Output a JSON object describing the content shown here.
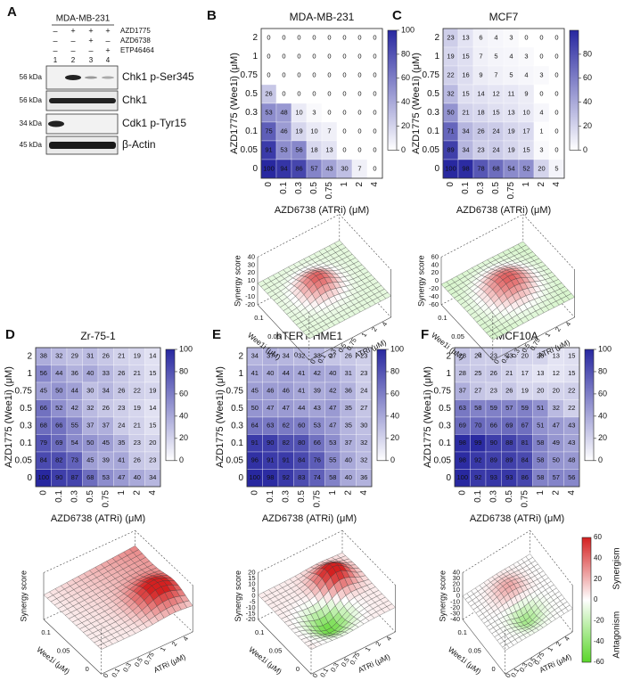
{
  "panel_a": {
    "label": "A",
    "cell_line": "MDA-MB-231",
    "treatments": [
      {
        "name": "AZD1775",
        "signs": [
          "–",
          "+",
          "+",
          "+"
        ]
      },
      {
        "name": "AZD6738",
        "signs": [
          "–",
          "–",
          "+",
          "–"
        ]
      },
      {
        "name": "ETP46464",
        "signs": [
          "–",
          "–",
          "–",
          "+"
        ]
      }
    ],
    "lanes": [
      1,
      2,
      3,
      4
    ],
    "blots": [
      {
        "mw": "56 kDa",
        "protein": "Chk1 p-Ser345"
      },
      {
        "mw": "56 kDa",
        "protein": "Chk1"
      },
      {
        "mw": "34 kDa",
        "protein": "Cdk1 p-Tyr15"
      },
      {
        "mw": "45 kDa",
        "protein": "β-Actin"
      }
    ]
  },
  "heatmaps": [
    {
      "label": "B",
      "title": "MDA-MB-231",
      "ylabel": "AZD1775 (Wee1i) (μM)",
      "xlabel": "AZD6738 (ATRi) (μM)",
      "rows": [
        2,
        1,
        0.75,
        0.5,
        0.3,
        0.1,
        0.05,
        0
      ],
      "cols": [
        0,
        0.1,
        0.3,
        0.5,
        0.75,
        1,
        2,
        4
      ],
      "values": [
        [
          0,
          0,
          0,
          0,
          0,
          0,
          0,
          0
        ],
        [
          0,
          0,
          0,
          0,
          0,
          0,
          0,
          0
        ],
        [
          0,
          0,
          0,
          0,
          0,
          0,
          0,
          0
        ],
        [
          26,
          0,
          0,
          0,
          0,
          0,
          0,
          0
        ],
        [
          53,
          48,
          10,
          3,
          0,
          0,
          0,
          0
        ],
        [
          75,
          46,
          19,
          10,
          7,
          0,
          0,
          0
        ],
        [
          91,
          53,
          56,
          18,
          13,
          0,
          0,
          0
        ],
        [
          100,
          94,
          86,
          57,
          43,
          30,
          7,
          0
        ]
      ],
      "color_range": [
        0,
        100
      ],
      "colorbar_ticks": [
        0,
        20,
        40,
        60,
        80,
        100
      ]
    },
    {
      "label": "C",
      "title": "MCF7",
      "ylabel": "AZD1775 (Wee1i) (μM)",
      "xlabel": "AZD6738 (ATRi) (μM)",
      "rows": [
        2,
        1,
        0.75,
        0.5,
        0.3,
        0.1,
        0.05,
        0
      ],
      "cols": [
        0,
        0.1,
        0.3,
        0.5,
        0.75,
        1,
        2,
        4
      ],
      "values": [
        [
          23,
          13,
          6,
          4,
          3,
          0,
          0,
          0
        ],
        [
          19,
          15,
          7,
          5,
          4,
          3,
          0,
          0
        ],
        [
          22,
          16,
          9,
          7,
          5,
          4,
          3,
          0
        ],
        [
          32,
          15,
          14,
          12,
          11,
          9,
          0,
          0
        ],
        [
          50,
          21,
          18,
          15,
          13,
          10,
          4,
          0
        ],
        [
          71,
          34,
          26,
          24,
          19,
          17,
          1,
          0
        ],
        [
          89,
          34,
          23,
          24,
          19,
          15,
          3,
          0
        ],
        [
          100,
          98,
          78,
          68,
          54,
          52,
          20,
          5
        ]
      ],
      "color_range": [
        0,
        100
      ],
      "colorbar_ticks": [
        0,
        20,
        40,
        60,
        80
      ]
    },
    {
      "label": "D",
      "title": "Zr-75-1",
      "ylabel": "AZD1775 (Wee1i) (μM)",
      "xlabel": "AZD6738 (ATRi) (μM)",
      "rows": [
        2,
        1,
        0.75,
        0.5,
        0.3,
        0.1,
        0.05,
        0
      ],
      "cols": [
        0,
        0.1,
        0.3,
        0.5,
        0.75,
        1,
        2,
        4
      ],
      "values": [
        [
          38,
          32,
          29,
          31,
          26,
          21,
          19,
          14
        ],
        [
          56,
          44,
          36,
          40,
          33,
          26,
          21,
          15
        ],
        [
          45,
          50,
          44,
          30,
          34,
          26,
          22,
          19
        ],
        [
          66,
          52,
          42,
          32,
          26,
          23,
          19,
          14
        ],
        [
          68,
          66,
          55,
          37,
          37,
          24,
          21,
          15
        ],
        [
          79,
          69,
          54,
          50,
          45,
          35,
          23,
          20
        ],
        [
          84,
          82,
          73,
          45,
          39,
          41,
          26,
          23
        ],
        [
          100,
          90,
          87,
          68,
          53,
          47,
          40,
          34
        ]
      ],
      "color_range": [
        0,
        100
      ],
      "colorbar_ticks": [
        0,
        20,
        40,
        60,
        80,
        100
      ]
    },
    {
      "label": "E",
      "title": "hTERT-HME1",
      "ylabel": "AZD1775 (Wee1i) (μM)",
      "xlabel": "AZD6738 (ATRi) (μM)",
      "rows": [
        2,
        1,
        0.75,
        0.5,
        0.3,
        0.1,
        0.05,
        0
      ],
      "cols": [
        0,
        0.1,
        0.3,
        0.5,
        0.75,
        1,
        2,
        4
      ],
      "values": [
        [
          34,
          37,
          34,
          32,
          33,
          27,
          26,
          23
        ],
        [
          41,
          40,
          44,
          41,
          42,
          40,
          31,
          23
        ],
        [
          45,
          46,
          46,
          41,
          39,
          42,
          36,
          24
        ],
        [
          50,
          47,
          47,
          44,
          43,
          47,
          35,
          27
        ],
        [
          64,
          63,
          62,
          60,
          53,
          47,
          35,
          30
        ],
        [
          91,
          90,
          82,
          80,
          66,
          53,
          37,
          32
        ],
        [
          96,
          91,
          91,
          84,
          76,
          55,
          40,
          32
        ],
        [
          100,
          98,
          92,
          83,
          74,
          58,
          40,
          36
        ]
      ],
      "color_range": [
        0,
        100
      ],
      "colorbar_ticks": [
        0,
        20,
        40,
        60,
        80,
        100
      ]
    },
    {
      "label": "F",
      "title": "MCF10A",
      "ylabel": "AZD1775 (Wee1i) (μM)",
      "xlabel": "AZD6738 (ATRi) (μM)",
      "rows": [
        2,
        1,
        0.75,
        0.5,
        0.3,
        0.1,
        0.05,
        0
      ],
      "cols": [
        0,
        0.1,
        0.3,
        0.5,
        0.75,
        1,
        2,
        4
      ],
      "values": [
        [
          28,
          24,
          23,
          23,
          20,
          20,
          13,
          15
        ],
        [
          28,
          25,
          26,
          21,
          17,
          13,
          12,
          15
        ],
        [
          37,
          27,
          23,
          26,
          19,
          20,
          20,
          22
        ],
        [
          63,
          58,
          59,
          57,
          59,
          51,
          32,
          22
        ],
        [
          69,
          70,
          66,
          69,
          67,
          51,
          47,
          43
        ],
        [
          98,
          99,
          90,
          88,
          81,
          58,
          49,
          43
        ],
        [
          98,
          92,
          89,
          89,
          84,
          58,
          50,
          48
        ],
        [
          100,
          92,
          93,
          93,
          86,
          58,
          57,
          56
        ]
      ],
      "color_range": [
        0,
        100
      ],
      "colorbar_ticks": [
        0,
        20,
        40,
        60,
        80,
        100
      ]
    }
  ],
  "surfaces": [
    {
      "zlabel": "Synergy score",
      "zticks": [
        40,
        30,
        20,
        10,
        0,
        -10,
        -20
      ],
      "wee1_label": "Wee1i (μM)",
      "wee1_ticks": [
        0,
        0.05,
        0.1
      ],
      "atri_label": "ATRi (μM)",
      "atri_ticks": [
        0,
        0.1,
        0.3,
        0.5,
        0.75,
        1,
        2,
        4
      ]
    },
    {
      "zlabel": "Synergy score",
      "zticks": [
        60,
        40,
        20,
        0,
        -20,
        -40,
        -60
      ],
      "wee1_label": "Wee1i (μM)",
      "wee1_ticks": [
        0,
        0.05,
        0.1
      ],
      "atri_label": "ATRi (μM)",
      "atri_ticks": [
        0,
        0.1,
        0.3,
        0.5,
        0.75,
        1,
        2,
        4
      ]
    },
    {
      "zlabel": "Synergy score",
      "wee1_label": "Wee1i (μM)",
      "wee1_ticks": [
        0,
        0.05,
        0.1
      ],
      "atri_label": "ATRi (μM)",
      "atri_ticks": [
        0,
        0.1,
        0.3,
        0.5,
        0.75,
        1,
        2,
        4
      ]
    },
    {
      "zlabel": "Synergy score",
      "zticks": [
        20,
        15,
        10,
        5,
        0,
        -5,
        -10,
        -15,
        -20
      ],
      "wee1_label": "Wee1i (μM)",
      "wee1_ticks": [
        0,
        0.05,
        0.1
      ],
      "atri_label": "ATRi (μM)",
      "atri_ticks": [
        0,
        0.1,
        0.3,
        0.5,
        0.75,
        1,
        2,
        4
      ]
    },
    {
      "zlabel": "Synergy score",
      "zticks": [
        40,
        30,
        20,
        10,
        0,
        -10,
        -20,
        -30,
        -40
      ],
      "wee1_label": "Wee1i (μM)",
      "wee1_ticks": [
        0,
        0.05,
        0.1
      ],
      "atri_label": "ATRi (μM)",
      "atri_ticks": [
        0,
        0.1,
        0.3,
        0.5,
        0.75,
        1,
        2,
        4
      ]
    }
  ],
  "synergy_legend": {
    "ticks": [
      60,
      40,
      20,
      0,
      -20,
      -40,
      -60
    ],
    "synergism": "Synergism",
    "antagonism": "Antagonism"
  }
}
